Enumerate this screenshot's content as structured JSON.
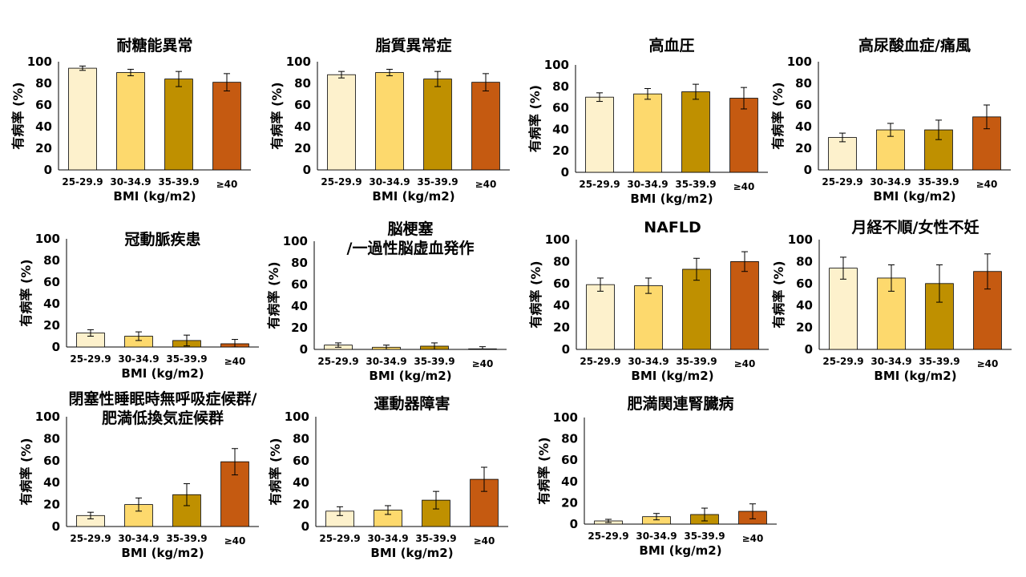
{
  "chart_data": [
    {
      "type": "bar",
      "title": "耐糖能異常",
      "categories": [
        "25-29.9",
        "30-34.9",
        "35-39.9",
        "≥40"
      ],
      "values": [
        94,
        90,
        84,
        81
      ],
      "error": [
        2,
        3,
        7,
        8
      ],
      "xlabel": "BMI (kg/m2)",
      "ylabel": "有病率 (%)",
      "ylim": [
        0,
        100
      ]
    },
    {
      "type": "bar",
      "title": "脂質異常症",
      "categories": [
        "25-29.9",
        "30-34.9",
        "35-39.9",
        "≥40"
      ],
      "values": [
        88,
        90,
        84,
        81
      ],
      "error": [
        3,
        3,
        7,
        8
      ],
      "xlabel": "BMI (kg/m2)",
      "ylabel": "有病率 (%)",
      "ylim": [
        0,
        100
      ]
    },
    {
      "type": "bar",
      "title": "高血圧",
      "categories": [
        "25-29.9",
        "30-34.9",
        "35-39.9",
        "≥40"
      ],
      "values": [
        70,
        73,
        75,
        69
      ],
      "error": [
        4,
        5,
        7,
        10
      ],
      "xlabel": "BMI (kg/m2)",
      "ylabel": "有病率 (%)",
      "ylim": [
        0,
        100
      ]
    },
    {
      "type": "bar",
      "title": "高尿酸血症/痛風",
      "categories": [
        "25-29.9",
        "30-34.9",
        "35-39.9",
        "≥40"
      ],
      "values": [
        30,
        37,
        37,
        49
      ],
      "error": [
        4,
        6,
        9,
        11
      ],
      "xlabel": "BMI (kg/m2)",
      "ylabel": "有病率 (%)",
      "ylim": [
        0,
        100
      ]
    },
    {
      "type": "bar",
      "title": "冠動脈疾患",
      "categories": [
        "25-29.9",
        "30-34.9",
        "35-39.9",
        "≥40"
      ],
      "values": [
        13,
        10,
        6,
        3
      ],
      "error": [
        3,
        4,
        5,
        4
      ],
      "xlabel": "BMI (kg/m2)",
      "ylabel": "有病率 (%)",
      "ylim": [
        0,
        100
      ]
    },
    {
      "type": "bar",
      "title": [
        "脳梗塞",
        "/一過性脳虚血発作"
      ],
      "categories": [
        "25-29.9",
        "30-34.9",
        "35-39.9",
        "≥40"
      ],
      "values": [
        4,
        2,
        3,
        0.5
      ],
      "error": [
        2,
        2,
        3,
        2
      ],
      "xlabel": "BMI (kg/m2)",
      "ylabel": "有病率 (%)",
      "ylim": [
        0,
        100
      ]
    },
    {
      "type": "bar",
      "title": "NAFLD",
      "categories": [
        "25-29.9",
        "30-34.9",
        "35-39.9",
        "≥40"
      ],
      "values": [
        59,
        58,
        73,
        80
      ],
      "error": [
        6,
        7,
        10,
        9
      ],
      "xlabel": "BMI (kg/m2)",
      "ylabel": "有病率 (%)",
      "ylim": [
        0,
        100
      ]
    },
    {
      "type": "bar",
      "title": "月経不順/女性不妊",
      "categories": [
        "25-29.9",
        "30-34.9",
        "35-39.9",
        "≥40"
      ],
      "values": [
        74,
        65,
        60,
        71
      ],
      "error": [
        10,
        12,
        17,
        16
      ],
      "xlabel": "BMI (kg/m2)",
      "ylabel": "有病率 (%)",
      "ylim": [
        0,
        100
      ]
    },
    {
      "type": "bar",
      "title": [
        "閉塞性睡眠時無呼吸症候群/",
        "肥満低換気症候群"
      ],
      "categories": [
        "25-29.9",
        "30-34.9",
        "35-39.9",
        "≥40"
      ],
      "values": [
        10,
        20,
        29,
        59
      ],
      "error": [
        3,
        6,
        10,
        12
      ],
      "xlabel": "BMI (kg/m2)",
      "ylabel": "有病率 (%)",
      "ylim": [
        0,
        100
      ]
    },
    {
      "type": "bar",
      "title": "運動器障害",
      "categories": [
        "25-29.9",
        "30-34.9",
        "35-39.9",
        "≥40"
      ],
      "values": [
        14,
        15,
        24,
        43
      ],
      "error": [
        4,
        4,
        8,
        11
      ],
      "xlabel": "BMI (kg/m2)",
      "ylabel": "有病率 (%)",
      "ylim": [
        0,
        100
      ]
    },
    {
      "type": "bar",
      "title": "肥満関連腎臓病",
      "categories": [
        "25-29.9",
        "30-34.9",
        "35-39.9",
        "≥40"
      ],
      "values": [
        3,
        7,
        9,
        12
      ],
      "error": [
        1.5,
        3,
        6,
        7
      ],
      "xlabel": "BMI (kg/m2)",
      "ylabel": "有病率 (%)",
      "ylim": [
        0,
        100
      ]
    }
  ],
  "colors": {
    "bar_fills": [
      "#fdf1cc",
      "#fdd96d",
      "#bf9000",
      "#c55a11"
    ],
    "axis": "#000000"
  }
}
